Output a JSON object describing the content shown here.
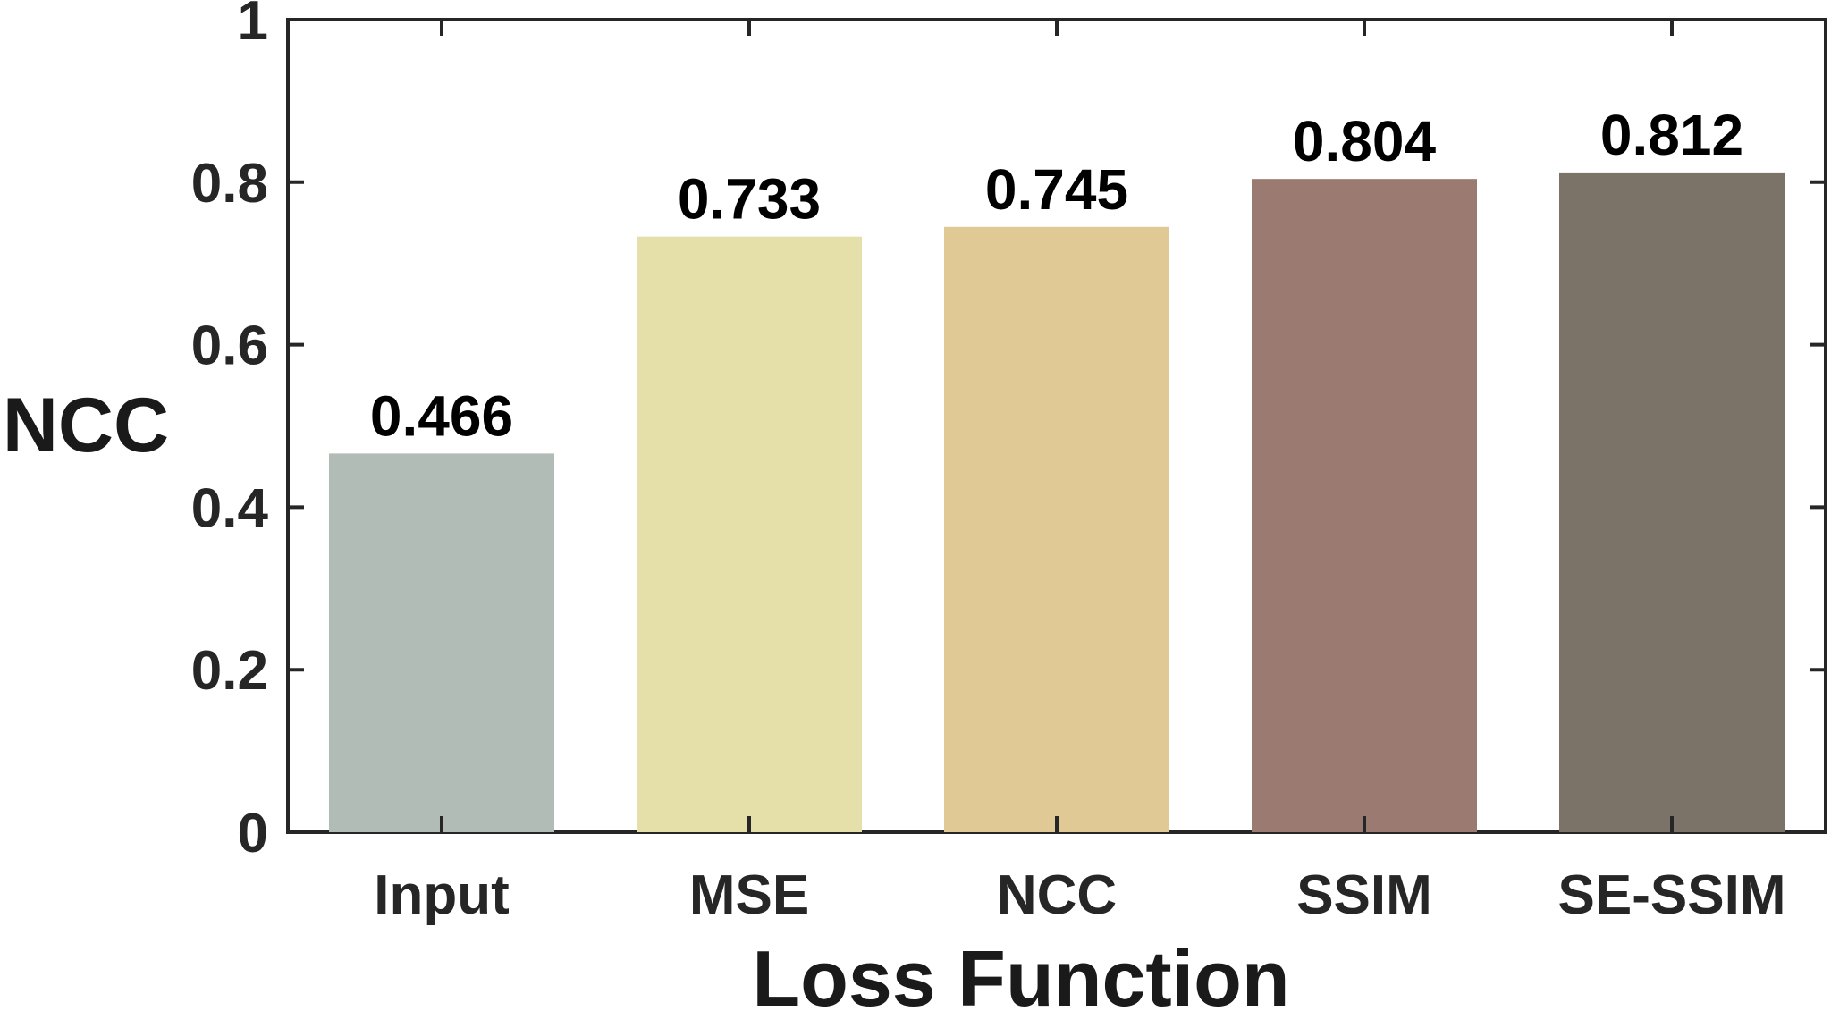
{
  "chart_data": {
    "type": "bar",
    "categories": [
      "Input",
      "MSE",
      "NCC",
      "SSIM",
      "SE-SSIM"
    ],
    "values": [
      0.466,
      0.733,
      0.745,
      0.804,
      0.812
    ],
    "data_labels": [
      "0.466",
      "0.733",
      "0.745",
      "0.804",
      "0.812"
    ],
    "colors": [
      "#b0bcb5",
      "#e5e0a9",
      "#e0c995",
      "#9b7a71",
      "#7c7368"
    ],
    "xlabel": "Loss Function",
    "ylabel": "NCC",
    "ylim": [
      0,
      1
    ],
    "yticks": [
      0,
      0.2,
      0.4,
      0.6,
      0.8,
      1
    ],
    "ytick_labels": [
      "0",
      "0.2",
      "0.4",
      "0.6",
      "0.8",
      "1"
    ],
    "grid": false,
    "legend": "none"
  }
}
